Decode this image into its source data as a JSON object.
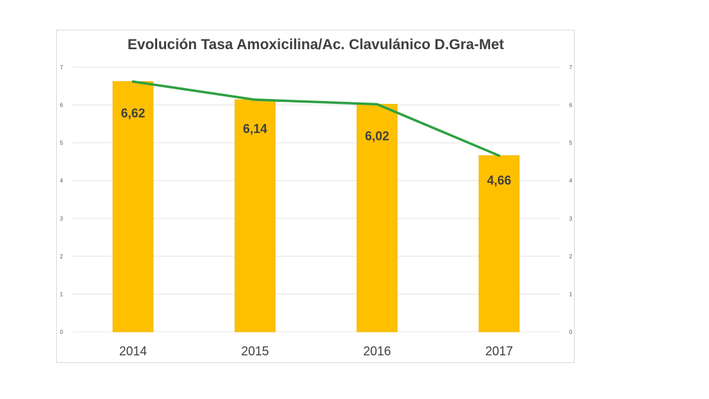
{
  "chart_data": {
    "type": "bar",
    "title": "Evolución Tasa Amoxicilina/Ac. Clavulánico D.Gra-Met",
    "categories": [
      "2014",
      "2015",
      "2016",
      "2017"
    ],
    "values": [
      6.62,
      6.14,
      6.02,
      4.66
    ],
    "data_labels": [
      "6,62",
      "6,14",
      "6,02",
      "4,66"
    ],
    "line_overlay": {
      "values": [
        6.62,
        6.14,
        6.02,
        4.66
      ],
      "color": "#2ea043"
    },
    "ylim": [
      0,
      7
    ],
    "yticks": [
      "0",
      "1",
      "2",
      "3",
      "4",
      "5",
      "6",
      "7"
    ],
    "secondary_ylim": [
      0,
      7
    ],
    "secondary_yticks": [
      "0",
      "1",
      "2",
      "3",
      "4",
      "5",
      "6",
      "7"
    ],
    "grid": true,
    "legend": "none",
    "bar_color": "#ffc000",
    "bar_edge_color": "#f2b600",
    "grid_color": "#e3e3e3"
  }
}
